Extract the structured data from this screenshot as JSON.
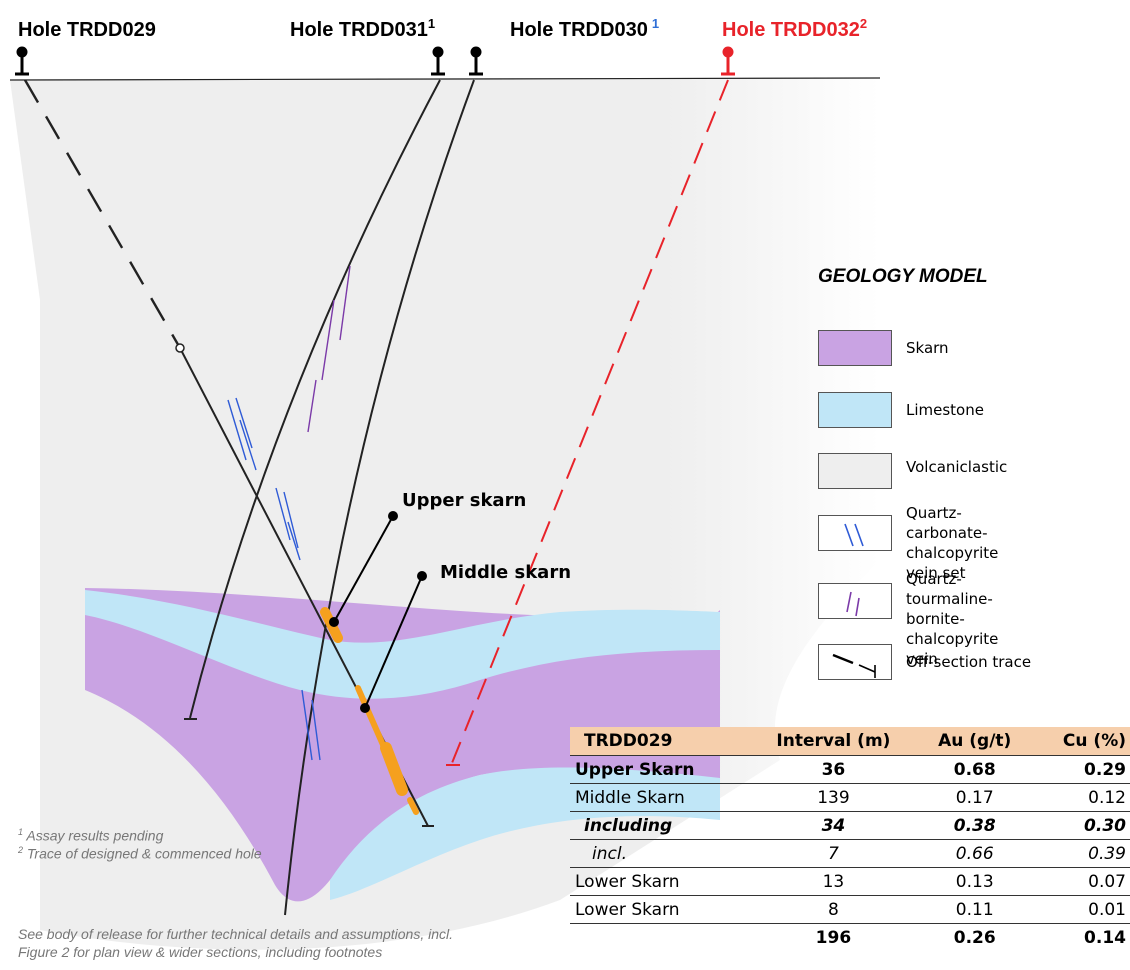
{
  "holes": [
    {
      "name": "Hole TRDD029",
      "sup": ""
    },
    {
      "name": "Hole TRDD031",
      "sup": "1"
    },
    {
      "name": "Hole TRDD030",
      "sup": "1"
    },
    {
      "name": "Hole TRDD032",
      "sup": "2"
    }
  ],
  "colors": {
    "skarn": "#c9a3e3",
    "limestone": "#c0e6f7",
    "volcaniclastic": "#eeeeee",
    "intercept": "#f5a01e",
    "designed_trace": "#e8232a",
    "vein_blue": "#2f5bd6",
    "vein_purple": "#7b3aa8",
    "footnote_sup_blue": "#2f6fd6",
    "table_header": "#f6cfac"
  },
  "zones": {
    "upper": "Upper skarn",
    "middle": "Middle skarn"
  },
  "legend": {
    "title": "GEOLOGY MODEL",
    "items": [
      {
        "label": "Skarn"
      },
      {
        "label": "Limestone"
      },
      {
        "label": "Volcaniclastic"
      },
      {
        "label": "Quartz-carbonate-\nchalcopyrite vein set"
      },
      {
        "label": "Quartz-tourmaline-\nbornite-chalcopyrite vein"
      },
      {
        "label": "Off-section trace"
      }
    ]
  },
  "footnotes": {
    "n1": "Assay results pending",
    "n2": "Trace of designed & commenced  hole",
    "release_line1": "See body of release for further technical details and assumptions, incl.",
    "release_line2": "Figure 2 for plan view & wider sections, including footnotes"
  },
  "table": {
    "headers": [
      "TRDD029",
      "Interval (m)",
      "Au (g/t)",
      "Cu (%)"
    ],
    "rows": [
      {
        "cells": [
          "Upper Skarn",
          "36",
          "0.68",
          "0.29"
        ],
        "style": "bold"
      },
      {
        "cells": [
          "Middle Skarn",
          "139",
          "0.17",
          "0.12"
        ],
        "style": "normal"
      },
      {
        "cells": [
          "including",
          "34",
          "0.38",
          "0.30"
        ],
        "style": "ib"
      },
      {
        "cells": [
          "incl.",
          "7",
          "0.66",
          "0.39"
        ],
        "style": "it"
      },
      {
        "cells": [
          "Lower Skarn",
          "13",
          "0.13",
          "0.07"
        ],
        "style": "normal"
      },
      {
        "cells": [
          "Lower Skarn",
          "8",
          "0.11",
          "0.01"
        ],
        "style": "normal"
      },
      {
        "cells": [
          "",
          "196",
          "0.26",
          "0.14"
        ],
        "style": "total"
      }
    ]
  }
}
